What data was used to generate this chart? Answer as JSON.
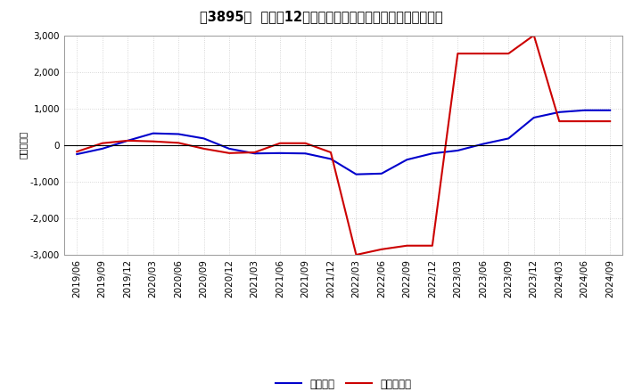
{
  "title": "［3895］  利益の12か月移動合計の対前年同期増減額の推移",
  "ylabel": "（百万円）",
  "ylim": [
    -3000,
    3000
  ],
  "yticks": [
    -3000,
    -2000,
    -1000,
    0,
    1000,
    2000,
    3000
  ],
  "background_color": "#ffffff",
  "plot_bg_color": "#ffffff",
  "grid_color": "#cccccc",
  "x_labels": [
    "2019/06",
    "2019/09",
    "2019/12",
    "2020/03",
    "2020/06",
    "2020/09",
    "2020/12",
    "2021/03",
    "2021/06",
    "2021/09",
    "2021/12",
    "2022/03",
    "2022/06",
    "2022/09",
    "2022/12",
    "2023/03",
    "2023/06",
    "2023/09",
    "2023/12",
    "2024/03",
    "2024/06",
    "2024/09"
  ],
  "keijo_rieki": [
    -250,
    -100,
    120,
    320,
    300,
    180,
    -100,
    -230,
    -220,
    -230,
    -380,
    -800,
    -780,
    -400,
    -230,
    -150,
    30,
    180,
    750,
    900,
    950,
    950
  ],
  "touki_jun_rieki": [
    -180,
    50,
    120,
    100,
    60,
    -100,
    -220,
    -200,
    50,
    50,
    -200,
    -3000,
    -2850,
    -2750,
    -2750,
    2500,
    2500,
    2500,
    3000,
    650,
    650,
    650
  ],
  "keijo_color": "#0000cc",
  "touki_color": "#cc0000",
  "line_width": 1.5,
  "legend_keijo": "経常利益",
  "legend_touki": "当期純利益",
  "title_fontsize": 10.5,
  "axis_fontsize": 7.5,
  "legend_fontsize": 8.5
}
